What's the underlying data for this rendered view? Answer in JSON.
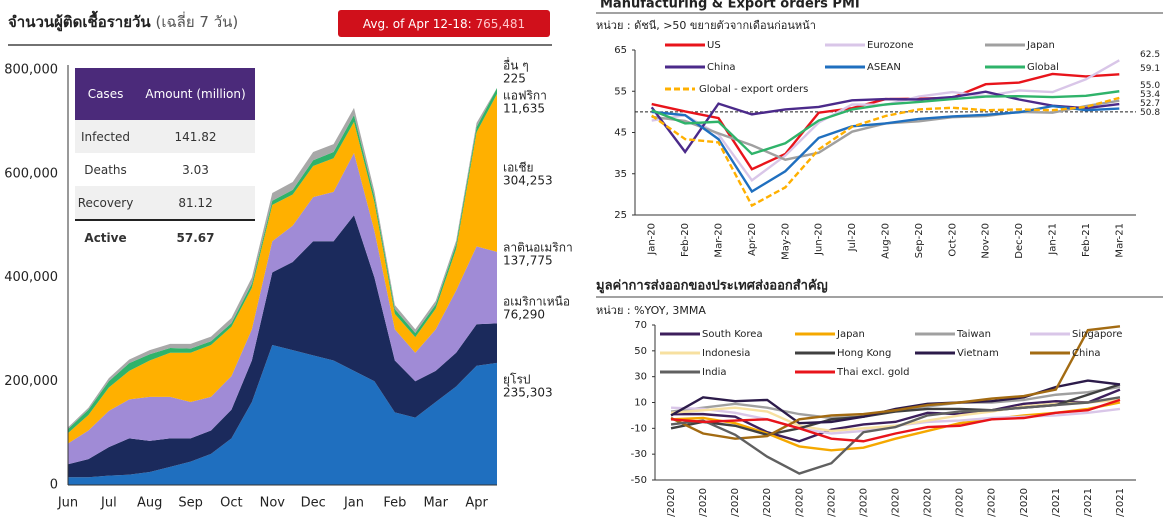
{
  "chart_data": [
    {
      "type": "stacked-area",
      "title": "จำนวนผู้ติดเชื้อรายวัน",
      "subtitle": "(เฉลี่ย 7 วัน)",
      "annotation": {
        "label": "Avg. of Apr 12-18:",
        "value": "765,481"
      },
      "categories": [
        "Jun",
        null,
        "Jul",
        null,
        "Aug",
        null,
        "Sep",
        null,
        "Oct",
        null,
        "Nov",
        null,
        "Dec",
        null,
        "Jan",
        null,
        "Feb",
        null,
        "Mar",
        null,
        "Apr",
        null
      ],
      "ylim": [
        0,
        800000
      ],
      "yticks": [
        0,
        {
          "value": 200000,
          "label": "200,000"
        },
        {
          "value": 400000,
          "label": "400,000"
        },
        {
          "value": 600000,
          "label": "600,000"
        },
        {
          "value": 800000,
          "label": "800,000"
        }
      ],
      "series": [
        {
          "name": "ยุโรป",
          "color": "#1f6fbf",
          "last_label": "235,303",
          "values": [
            15000,
            15000,
            18000,
            20000,
            25000,
            35000,
            45000,
            60000,
            90000,
            160000,
            270000,
            260000,
            250000,
            240000,
            220000,
            200000,
            140000,
            130000,
            160000,
            190000,
            230000,
            235303
          ]
        },
        {
          "name": "อเมริกาเหนือ",
          "color": "#1b2a5c",
          "last_label": "76,290",
          "values": [
            25000,
            35000,
            55000,
            70000,
            60000,
            55000,
            45000,
            45000,
            55000,
            80000,
            140000,
            170000,
            220000,
            230000,
            300000,
            200000,
            100000,
            70000,
            60000,
            65000,
            80000,
            76290
          ]
        },
        {
          "name": "ลาตินอเมริกา",
          "color": "#a08bd6",
          "last_label": "137,775",
          "values": [
            40000,
            55000,
            70000,
            75000,
            85000,
            80000,
            70000,
            65000,
            65000,
            60000,
            60000,
            70000,
            85000,
            95000,
            120000,
            90000,
            60000,
            55000,
            80000,
            120000,
            150000,
            137775
          ]
        },
        {
          "name": "เอเชีย",
          "color": "#ffb000",
          "last_label": "304,253",
          "values": [
            20000,
            30000,
            45000,
            55000,
            70000,
            85000,
            95000,
            100000,
            95000,
            80000,
            70000,
            60000,
            60000,
            65000,
            60000,
            55000,
            30000,
            30000,
            40000,
            80000,
            220000,
            304253
          ]
        },
        {
          "name": "แอฟริกา",
          "color": "#2fb36a",
          "last_label": "11,635",
          "values": [
            8000,
            10000,
            12000,
            15000,
            12000,
            9000,
            8000,
            7000,
            7000,
            8000,
            8000,
            9000,
            11000,
            12000,
            13000,
            11000,
            9000,
            8000,
            8000,
            9000,
            10000,
            11635
          ]
        },
        {
          "name": "อื่น ๆ",
          "color": "#a8a8a8",
          "last_label": "225",
          "values": [
            3000,
            4000,
            6000,
            7000,
            8000,
            8000,
            9000,
            9000,
            10000,
            12000,
            15000,
            15000,
            16000,
            15000,
            14000,
            10000,
            8000,
            7000,
            7000,
            7000,
            8000,
            225
          ]
        }
      ],
      "table": {
        "header": [
          "Cases",
          "Amount (million)"
        ],
        "rows": [
          [
            "Infected",
            141.82
          ],
          [
            "Deaths",
            3.03
          ],
          [
            "Recovery",
            81.12
          ],
          [
            "Active",
            57.67
          ]
        ]
      }
    },
    {
      "type": "line",
      "title": "Manufacturing & Export orders PMI",
      "subtitle": "หน่วย : ดัชนี, >50 ขยายตัวจากเดือนก่อนหน้า",
      "categories": [
        "Jan-20",
        "Feb-20",
        "Mar-20",
        "Apr-20",
        "May-20",
        "Jun-20",
        "Jul-20",
        "Aug-20",
        "Sep-20",
        "Oct-20",
        "Nov-20",
        "Dec-20",
        "Jan-21",
        "Feb-21",
        "Mar-21"
      ],
      "ylim": [
        25,
        65
      ],
      "yticks": [
        25,
        35,
        45,
        55,
        65
      ],
      "reference_line": 50,
      "series": [
        {
          "name": "US",
          "color": "#e8141b",
          "last_label": "59.1",
          "values": [
            51.9,
            50.1,
            48.5,
            36.1,
            39.8,
            49.8,
            50.9,
            53.1,
            53.2,
            53.4,
            56.7,
            57.1,
            59.2,
            58.6,
            59.1
          ]
        },
        {
          "name": "Eurozone",
          "color": "#d9c6e8",
          "last_label": "62.5",
          "values": [
            47.9,
            49.2,
            44.5,
            33.4,
            39.4,
            47.4,
            51.8,
            51.7,
            53.7,
            54.8,
            53.8,
            55.2,
            54.8,
            57.9,
            62.5
          ]
        },
        {
          "name": "Japan",
          "color": "#a0a0a0",
          "last_label": "52.7",
          "values": [
            48.8,
            47.8,
            44.8,
            41.9,
            38.4,
            40.1,
            45.2,
            47.2,
            47.7,
            48.7,
            49.0,
            50.0,
            49.8,
            51.4,
            52.7
          ]
        },
        {
          "name": "China",
          "color": "#4b2a8a",
          "values": [
            51.1,
            40.3,
            52.0,
            49.4,
            50.6,
            51.2,
            52.8,
            53.1,
            53.0,
            53.6,
            54.9,
            53.0,
            51.5,
            50.9,
            51.9
          ]
        },
        {
          "name": "ASEAN",
          "color": "#1f6fbf",
          "last_label": "50.8",
          "values": [
            50.0,
            49.2,
            43.4,
            30.7,
            35.6,
            43.7,
            46.5,
            47.2,
            48.3,
            48.9,
            49.3,
            49.9,
            51.4,
            50.4,
            50.8
          ]
        },
        {
          "name": "Global",
          "color": "#2fb36a",
          "last_label": "55.0",
          "values": [
            50.4,
            47.2,
            47.6,
            39.8,
            42.4,
            47.9,
            50.6,
            51.8,
            52.4,
            53.1,
            53.7,
            53.8,
            53.6,
            53.9,
            55.0
          ]
        },
        {
          "name": "Global - export orders",
          "color": "#ffb000",
          "dash": true,
          "last_label": "53.4",
          "values": [
            49.1,
            43.4,
            42.6,
            27.3,
            31.7,
            40.9,
            46.4,
            49.0,
            50.6,
            51.0,
            50.4,
            50.6,
            50.4,
            51.2,
            53.4
          ]
        }
      ]
    },
    {
      "type": "line",
      "title": "มูลค่าการส่งออกของประเทศส่งออกสำคัญ",
      "subtitle": "หน่วย : %YOY, 3MMA",
      "categories": [
        "/2020",
        "/2020",
        "/2020",
        "/2020",
        "/2020",
        "/2020",
        "/2020",
        "/2020",
        "/2020",
        "/2020",
        "/2020",
        "/2020",
        "/2021",
        "/2021",
        "/2021"
      ],
      "ylim": [
        -50,
        70
      ],
      "yticks": [
        -50,
        -30,
        -10,
        10,
        30,
        50,
        70
      ],
      "series": [
        {
          "name": "South Korea",
          "color": "#3d1f5c",
          "values": [
            1,
            1,
            -1,
            -13,
            -20,
            -11,
            -7,
            -5,
            2,
            1,
            4,
            9,
            11,
            10,
            20
          ]
        },
        {
          "name": "Japan",
          "color": "#f5a800",
          "values": [
            -3,
            -2,
            -6,
            -14,
            -24,
            -27,
            -25,
            -18,
            -12,
            -6,
            -3,
            0,
            2,
            5,
            10
          ]
        },
        {
          "name": "Taiwan",
          "color": "#a0a0a0",
          "values": [
            3,
            6,
            9,
            6,
            1,
            -2,
            -1,
            4,
            7,
            10,
            10,
            12,
            16,
            18,
            22
          ]
        },
        {
          "name": "Singapore",
          "color": "#d9c6e8",
          "values": [
            6,
            5,
            2,
            -3,
            -10,
            -14,
            -12,
            -8,
            -5,
            -4,
            -2,
            -1,
            0,
            2,
            5
          ]
        },
        {
          "name": "Indonesia",
          "color": "#f7e0a0",
          "values": [
            2,
            4,
            6,
            3,
            -8,
            -12,
            -10,
            -8,
            -4,
            0,
            3,
            7,
            9,
            10,
            12
          ]
        },
        {
          "name": "Hong Kong",
          "color": "#404040",
          "values": [
            -10,
            -5,
            -8,
            -15,
            -10,
            -3,
            -1,
            3,
            5,
            5,
            4,
            6,
            8,
            16,
            24
          ]
        },
        {
          "name": "Vietnam",
          "color": "#2c1b4a",
          "values": [
            0,
            14,
            11,
            12,
            -6,
            -5,
            -1,
            5,
            9,
            10,
            11,
            14,
            22,
            27,
            24
          ]
        },
        {
          "name": "China",
          "color": "#a36b12",
          "values": [
            -2,
            -14,
            -18,
            -16,
            -3,
            0,
            1,
            4,
            8,
            10,
            13,
            15,
            20,
            66,
            69
          ]
        },
        {
          "name": "India",
          "color": "#606060",
          "values": [
            -7,
            -4,
            -15,
            -32,
            -45,
            -37,
            -13,
            -9,
            0,
            3,
            4,
            6,
            8,
            10,
            14
          ]
        },
        {
          "name": "Thai excl. gold",
          "color": "#e8141b",
          "values": [
            -3,
            -5,
            -4,
            -3,
            -10,
            -18,
            -20,
            -14,
            -9,
            -8,
            -3,
            -2,
            2,
            4,
            12
          ]
        }
      ]
    }
  ]
}
